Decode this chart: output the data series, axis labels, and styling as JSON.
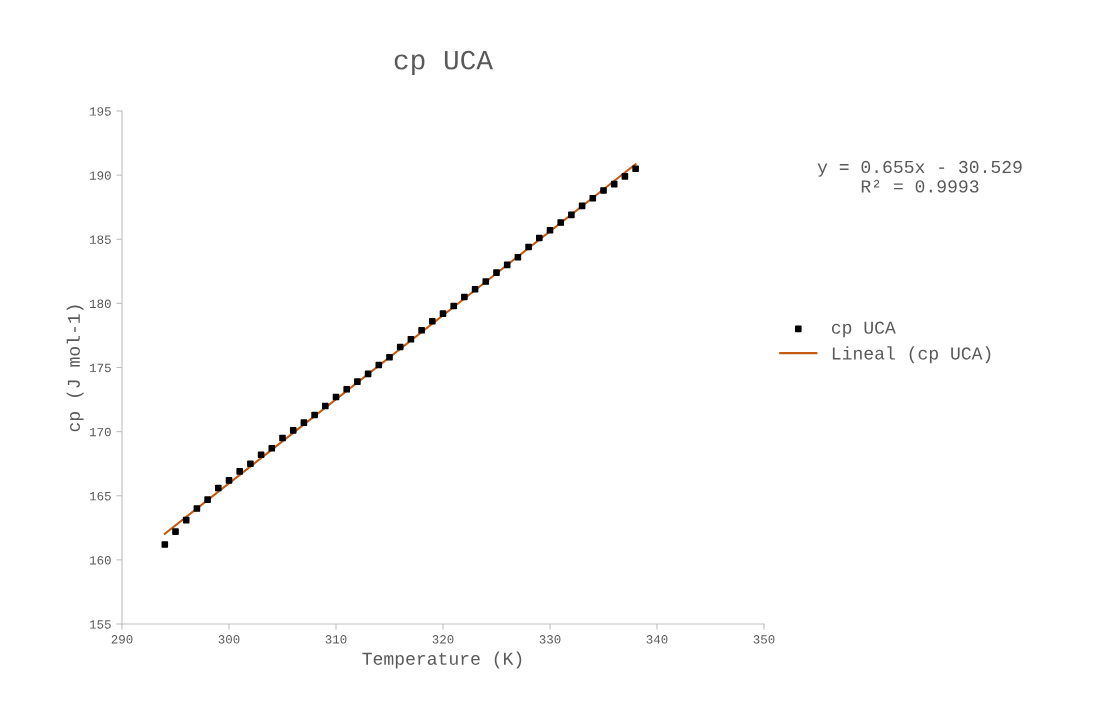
{
  "chart_data": {
    "type": "scatter",
    "title": "cp UCA",
    "xlabel": "Temperature (K)",
    "ylabel": "cp (J mol-1)",
    "x": [
      294,
      295,
      296,
      297,
      298,
      299,
      300,
      301,
      302,
      303,
      304,
      305,
      306,
      307,
      308,
      309,
      310,
      311,
      312,
      313,
      314,
      315,
      316,
      317,
      318,
      319,
      320,
      321,
      322,
      323,
      324,
      325,
      326,
      327,
      328,
      329,
      330,
      331,
      332,
      333,
      334,
      335,
      336,
      337,
      338
    ],
    "series": [
      {
        "name": "cp UCA",
        "color": "#000000",
        "marker": "square",
        "values": [
          161.2,
          162.2,
          163.1,
          164.0,
          164.7,
          165.6,
          166.2,
          166.9,
          167.5,
          168.2,
          168.7,
          169.5,
          170.1,
          170.7,
          171.3,
          172.0,
          172.7,
          173.3,
          173.9,
          174.5,
          175.2,
          175.8,
          176.6,
          177.2,
          177.9,
          178.6,
          179.2,
          179.8,
          180.5,
          181.1,
          181.7,
          182.4,
          183.0,
          183.6,
          184.4,
          185.1,
          185.7,
          186.3,
          186.9,
          187.6,
          188.2,
          188.8,
          189.3,
          189.9,
          190.5
        ]
      },
      {
        "name": "Lineal (cp UCA)",
        "type": "line",
        "color": "#c55a11",
        "line_style": "solid",
        "marker": "none",
        "x": [
          294,
          338
        ],
        "values": [
          162.04,
          190.86
        ]
      }
    ],
    "annotations": [
      "y = 0.655x - 30.529\nR² = 0.9993"
    ],
    "xlim": [
      290,
      350
    ],
    "xticks": [
      290,
      300,
      310,
      320,
      330,
      340,
      350
    ],
    "ylim": [
      155,
      195
    ],
    "yticks": [
      155,
      160,
      165,
      170,
      175,
      180,
      185,
      190,
      195
    ],
    "grid": false,
    "legend": "right"
  }
}
